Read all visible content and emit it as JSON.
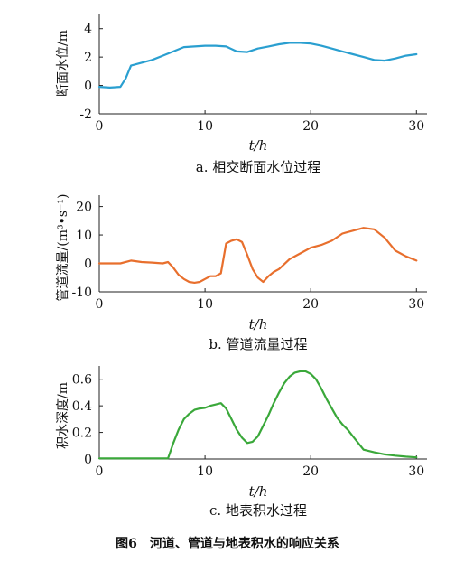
{
  "figure_caption": "图6　河道、管道与地表积水的响应关系",
  "panels_text": [
    {
      "ylabel": "断面水位/m",
      "xlabel": "t/h",
      "caption": "a. 相交断面水位过程"
    },
    {
      "ylabel": "管道流量/(m³•s⁻¹)",
      "xlabel": "t/h",
      "caption": "b. 管道流量过程"
    },
    {
      "ylabel": "积水深度/m",
      "xlabel": "t/h",
      "caption": "c. 地表积水过程"
    }
  ],
  "chart_data": [
    {
      "type": "line",
      "title": "a. 相交断面水位过程",
      "xlabel": "t/h",
      "ylabel": "断面水位/m",
      "xlim": [
        0,
        31
      ],
      "ylim": [
        -2,
        5
      ],
      "xticks": [
        0,
        10,
        20,
        30
      ],
      "yticks": [
        -2,
        0,
        2,
        4
      ],
      "grid": false,
      "color": "#2a9fd0",
      "series": [
        {
          "x": [
            0,
            1,
            2,
            2.5,
            3,
            4,
            5,
            6,
            7,
            8,
            9,
            10,
            11,
            12,
            13,
            14,
            15,
            16,
            17,
            18,
            19,
            20,
            21,
            22,
            23,
            24,
            25,
            26,
            27,
            28,
            29,
            30
          ],
          "y": [
            -0.1,
            -0.15,
            -0.1,
            0.5,
            1.4,
            1.6,
            1.8,
            2.1,
            2.4,
            2.7,
            2.75,
            2.8,
            2.8,
            2.75,
            2.4,
            2.35,
            2.6,
            2.75,
            2.9,
            3.0,
            3.0,
            2.95,
            2.8,
            2.6,
            2.4,
            2.2,
            2.0,
            1.8,
            1.75,
            1.9,
            2.1,
            2.2
          ]
        }
      ]
    },
    {
      "type": "line",
      "title": "b. 管道流量过程",
      "xlabel": "t/h",
      "ylabel": "管道流量/(m³•s⁻¹)",
      "xlim": [
        0,
        31
      ],
      "ylim": [
        -10,
        24
      ],
      "xticks": [
        0,
        10,
        20,
        30
      ],
      "yticks": [
        -10,
        0,
        10,
        20
      ],
      "grid": false,
      "color": "#e86f2d",
      "series": [
        {
          "x": [
            0,
            1,
            2,
            3,
            4,
            5,
            6,
            6.5,
            7,
            7.5,
            8,
            8.5,
            9,
            9.5,
            10,
            10.5,
            11,
            11.5,
            12,
            12.5,
            13,
            13.5,
            14,
            14.5,
            15,
            15.5,
            16,
            16.5,
            17,
            18,
            19,
            20,
            21,
            22,
            23,
            24,
            25,
            26,
            27,
            28,
            29,
            30
          ],
          "y": [
            0,
            0,
            0,
            1,
            0.5,
            0.3,
            0,
            0.5,
            -1.5,
            -4,
            -5.5,
            -6.5,
            -6.8,
            -6.5,
            -5.5,
            -4.5,
            -4.5,
            -3.5,
            7,
            8,
            8.5,
            7.5,
            3,
            -2,
            -5,
            -6.5,
            -4.5,
            -3,
            -2,
            1.5,
            3.5,
            5.5,
            6.5,
            8,
            10.5,
            11.5,
            12.5,
            12,
            9,
            4.5,
            2.5,
            1
          ]
        }
      ]
    },
    {
      "type": "line",
      "title": "c. 地表积水过程",
      "xlabel": "t/h",
      "ylabel": "积水深度/m",
      "xlim": [
        0,
        31
      ],
      "ylim": [
        0,
        0.7
      ],
      "xticks": [
        0,
        10,
        20,
        30
      ],
      "yticks": [
        0,
        0.2,
        0.4,
        0.6
      ],
      "yticklabels": [
        "0",
        "0.2",
        "0.4",
        "0.6"
      ],
      "grid": false,
      "color": "#3aa83a",
      "series": [
        {
          "x": [
            0,
            5,
            6.5,
            7,
            7.5,
            8,
            8.5,
            9,
            9.5,
            10,
            10.5,
            11,
            11.5,
            12,
            12.5,
            13,
            13.5,
            14,
            14.5,
            15,
            15.5,
            16,
            16.5,
            17,
            17.5,
            18,
            18.5,
            19,
            19.5,
            20,
            20.5,
            21,
            21.5,
            22,
            22.5,
            23,
            23.5,
            24,
            25,
            26,
            27,
            28,
            29,
            30
          ],
          "y": [
            0.005,
            0.005,
            0.005,
            0.12,
            0.22,
            0.3,
            0.34,
            0.37,
            0.38,
            0.385,
            0.4,
            0.41,
            0.42,
            0.38,
            0.3,
            0.22,
            0.16,
            0.12,
            0.13,
            0.17,
            0.25,
            0.33,
            0.42,
            0.5,
            0.57,
            0.62,
            0.65,
            0.66,
            0.66,
            0.64,
            0.6,
            0.53,
            0.45,
            0.38,
            0.31,
            0.26,
            0.22,
            0.17,
            0.07,
            0.05,
            0.035,
            0.025,
            0.018,
            0.012
          ]
        }
      ]
    }
  ]
}
